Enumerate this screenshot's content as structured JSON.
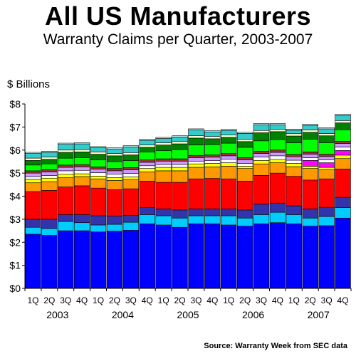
{
  "chart_data": {
    "type": "bar",
    "stacked": true,
    "title": "All US Manufacturers",
    "subtitle": "Warranty Claims per Quarter, 2003-2007",
    "ylabel": "$ Billions",
    "ylim": [
      0,
      8
    ],
    "yticks": [
      "$0",
      "$1",
      "$2",
      "$3",
      "$4",
      "$5",
      "$6",
      "$7",
      "$8"
    ],
    "grid": false,
    "categories": [
      "1Q",
      "2Q",
      "3Q",
      "4Q",
      "1Q",
      "2Q",
      "3Q",
      "4Q",
      "1Q",
      "2Q",
      "3Q",
      "4Q",
      "1Q",
      "2Q",
      "3Q",
      "4Q",
      "1Q",
      "2Q",
      "3Q",
      "4Q"
    ],
    "years": [
      "2003",
      "2004",
      "2005",
      "2006",
      "2007"
    ],
    "source": "Source: Warranty Week from SEC data",
    "series": [
      {
        "color": "#0000ff",
        "values": [
          2.35,
          2.3,
          2.5,
          2.5,
          2.45,
          2.48,
          2.52,
          2.8,
          2.75,
          2.65,
          2.8,
          2.8,
          2.75,
          2.7,
          2.8,
          2.85,
          2.8,
          2.7,
          2.72,
          3.05
        ]
      },
      {
        "color": "#00ccff",
        "values": [
          0.3,
          0.3,
          0.4,
          0.35,
          0.3,
          0.3,
          0.35,
          0.4,
          0.4,
          0.4,
          0.35,
          0.35,
          0.4,
          0.35,
          0.4,
          0.45,
          0.4,
          0.35,
          0.4,
          0.45
        ]
      },
      {
        "color": "#3333aa",
        "values": [
          0.35,
          0.4,
          0.3,
          0.35,
          0.4,
          0.35,
          0.3,
          0.3,
          0.3,
          0.35,
          0.3,
          0.3,
          0.3,
          0.35,
          0.45,
          0.4,
          0.38,
          0.4,
          0.4,
          0.45
        ]
      },
      {
        "color": "#ff0000",
        "values": [
          1.2,
          1.25,
          1.2,
          1.25,
          1.2,
          1.15,
          1.15,
          1.15,
          1.15,
          1.2,
          1.3,
          1.32,
          1.3,
          1.25,
          1.25,
          1.3,
          1.28,
          1.25,
          1.23,
          1.23
        ]
      },
      {
        "color": "#ff9900",
        "values": [
          0.38,
          0.38,
          0.4,
          0.4,
          0.4,
          0.4,
          0.4,
          0.4,
          0.5,
          0.5,
          0.5,
          0.5,
          0.55,
          0.55,
          0.5,
          0.45,
          0.42,
          0.5,
          0.4,
          0.45
        ]
      },
      {
        "color": "#ffff00",
        "values": [
          0.15,
          0.15,
          0.15,
          0.12,
          0.12,
          0.12,
          0.12,
          0.15,
          0.15,
          0.15,
          0.15,
          0.15,
          0.15,
          0.1,
          0.15,
          0.15,
          0.14,
          0.1,
          0.1,
          0.15
        ]
      },
      {
        "color": "#ff00ff",
        "values": [
          0,
          0,
          0,
          0,
          0,
          0,
          0,
          0,
          0,
          0,
          0,
          0,
          0,
          0,
          0,
          0,
          0,
          0.25,
          0.2,
          0.2
        ]
      },
      {
        "color": "#ffffff",
        "values": [
          0.12,
          0.12,
          0.15,
          0.15,
          0.15,
          0.15,
          0.15,
          0.12,
          0.12,
          0.12,
          0.12,
          0.12,
          0.15,
          0.12,
          0.15,
          0.15,
          0.14,
          0.12,
          0.12,
          0.15
        ]
      },
      {
        "color": "#cc99ff",
        "values": [
          0.15,
          0.15,
          0.15,
          0.15,
          0.15,
          0.15,
          0.15,
          0.15,
          0.15,
          0.15,
          0.15,
          0.15,
          0.15,
          0.15,
          0.15,
          0.15,
          0.15,
          0.15,
          0.15,
          0.15
        ]
      },
      {
        "color": "#993333",
        "values": [
          0.1,
          0.1,
          0.1,
          0.1,
          0.1,
          0.1,
          0.1,
          0.1,
          0.1,
          0.1,
          0.1,
          0.1,
          0.1,
          0.1,
          0.1,
          0.1,
          0.1,
          0.1,
          0.1,
          0.1
        ]
      },
      {
        "color": "#00ff00",
        "values": [
          0.25,
          0.25,
          0.3,
          0.3,
          0.3,
          0.3,
          0.3,
          0.35,
          0.35,
          0.4,
          0.45,
          0.45,
          0.45,
          0.45,
          0.45,
          0.45,
          0.5,
          0.55,
          0.5,
          0.5
        ]
      },
      {
        "color": "#008000",
        "values": [
          0.2,
          0.2,
          0.25,
          0.25,
          0.25,
          0.25,
          0.25,
          0.2,
          0.25,
          0.25,
          0.3,
          0.25,
          0.25,
          0.25,
          0.35,
          0.35,
          0.3,
          0.3,
          0.3,
          0.3
        ]
      },
      {
        "color": "#ffffcc",
        "values": [
          0.1,
          0.1,
          0.1,
          0.1,
          0.1,
          0.1,
          0.1,
          0.1,
          0.1,
          0.1,
          0.1,
          0.1,
          0.1,
          0.1,
          0.1,
          0.1,
          0.1,
          0.1,
          0.1,
          0.1
        ]
      },
      {
        "color": "#33cccc",
        "values": [
          0.2,
          0.2,
          0.25,
          0.25,
          0.18,
          0.2,
          0.25,
          0.2,
          0.18,
          0.2,
          0.25,
          0.2,
          0.2,
          0.25,
          0.25,
          0.2,
          0.15,
          0.2,
          0.2,
          0.22
        ]
      },
      {
        "color": "#ccffff",
        "values": [
          0.05,
          0.05,
          0.05,
          0.05,
          0.05,
          0.05,
          0.05,
          0.05,
          0.05,
          0.05,
          0.05,
          0.05,
          0.05,
          0.05,
          0.05,
          0.05,
          0.05,
          0.05,
          0.05,
          0.05
        ]
      }
    ]
  }
}
